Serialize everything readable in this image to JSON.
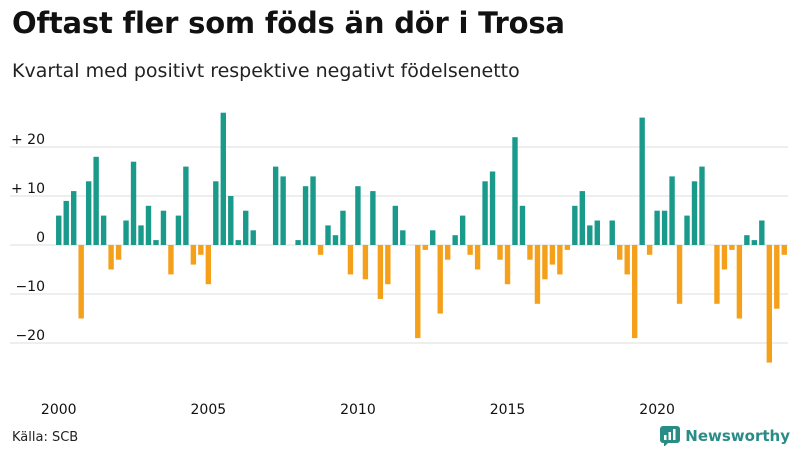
{
  "header": {
    "title": "Oftast fler som föds än dör i Trosa",
    "subtitle": "Kvartal med positivt respektive negativt födelsenetto"
  },
  "footer": {
    "source": "Källa: SCB",
    "brand": "Newsworthy"
  },
  "colors": {
    "positive": "#1a9a8a",
    "negative": "#f5a01a",
    "grid": "#dddddd",
    "brand": "#2a8c86"
  },
  "chart_data": {
    "type": "bar",
    "title": "Oftast fler som föds än dör i Trosa",
    "subtitle": "Kvartal med positivt respektive negativt födelsenetto",
    "xlabel": "",
    "ylabel": "",
    "ylim": [
      -26,
      30
    ],
    "grid": true,
    "y_ticks": [
      {
        "value": 20,
        "label": "+ 20"
      },
      {
        "value": 10,
        "label": "+ 10"
      },
      {
        "value": 0,
        "label": "0"
      },
      {
        "value": -10,
        "label": "−10"
      },
      {
        "value": -20,
        "label": "−20"
      }
    ],
    "x_ticks": [
      {
        "year": 2000,
        "label": "2000"
      },
      {
        "year": 2005,
        "label": "2005"
      },
      {
        "year": 2010,
        "label": "2010"
      },
      {
        "year": 2015,
        "label": "2015"
      },
      {
        "year": 2020,
        "label": "2020"
      }
    ],
    "start_year": 2000,
    "period": "quarter",
    "values": [
      6,
      9,
      11,
      -15,
      13,
      18,
      6,
      -5,
      -3,
      5,
      17,
      4,
      8,
      1,
      7,
      -6,
      6,
      16,
      -4,
      -2,
      -8,
      13,
      27,
      10,
      1,
      7,
      3,
      0,
      0,
      16,
      14,
      0,
      1,
      12,
      14,
      -2,
      4,
      2,
      7,
      -6,
      12,
      -7,
      11,
      -11,
      -8,
      8,
      3,
      0,
      -19,
      -1,
      3,
      -14,
      -3,
      2,
      6,
      -2,
      -5,
      13,
      15,
      -3,
      -8,
      22,
      8,
      -3,
      -12,
      -7,
      -4,
      -6,
      -1,
      8,
      11,
      4,
      5,
      0,
      5,
      -3,
      -6,
      -19,
      26,
      -2,
      7,
      7,
      14,
      -12,
      6,
      13,
      16,
      0,
      -12,
      -5,
      -1,
      -15,
      2,
      1,
      5,
      -24,
      -13,
      -2
    ]
  }
}
